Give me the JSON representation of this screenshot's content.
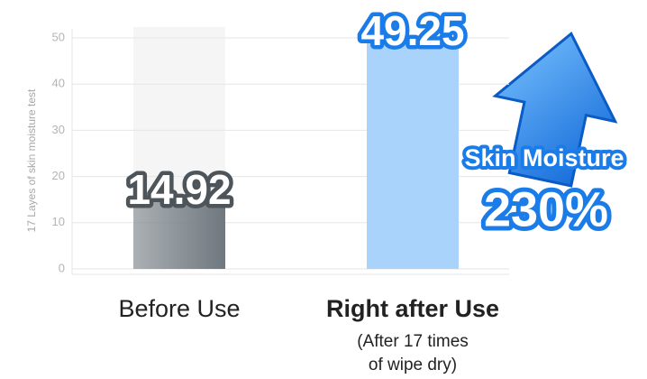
{
  "chart_data": {
    "type": "bar",
    "ylabel": "17 Layes of skin moisture test",
    "categories": [
      "Before Use",
      "Right after Use"
    ],
    "category_note": [
      "(After 17 times",
      "of wipe dry)"
    ],
    "values": [
      14.92,
      49.25
    ],
    "colors": [
      "#6f787f",
      "#a9d3fb"
    ],
    "label_stroke_colors": [
      "#4d555b",
      "#1a7ce8"
    ],
    "ylim": [
      0,
      50
    ],
    "yticks": [
      0,
      10,
      20,
      30,
      40,
      50
    ],
    "grid": true,
    "annotation": [
      "Skin Moisture",
      "230%"
    ]
  }
}
